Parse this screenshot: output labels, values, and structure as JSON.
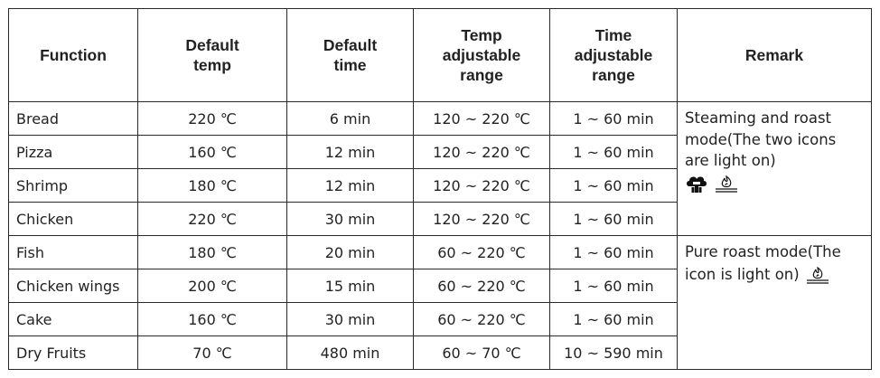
{
  "headers": {
    "function": "Function",
    "default_temp": "Default temp",
    "default_time": "Default time",
    "temp_range": "Temp adjustable range",
    "time_range": "Time adjustable range",
    "remark": "Remark"
  },
  "rows": [
    {
      "function": "Bread",
      "temp": "220 ℃",
      "time": "6 min",
      "temp_range": "120 ~ 220 ℃",
      "time_range": "1 ~ 60 min"
    },
    {
      "function": "Pizza",
      "temp": "160 ℃",
      "time": "12 min",
      "temp_range": "120 ~ 220 ℃",
      "time_range": "1 ~ 60 min"
    },
    {
      "function": "Shrimp",
      "temp": "180 ℃",
      "time": "12 min",
      "temp_range": "120 ~ 220 ℃",
      "time_range": "1 ~ 60 min"
    },
    {
      "function": "Chicken",
      "temp": "220 ℃",
      "time": "30 min",
      "temp_range": "120 ~ 220 ℃",
      "time_range": "1 ~ 60 min"
    },
    {
      "function": "Fish",
      "temp": "180 ℃",
      "time": "20 min",
      "temp_range": "60 ~ 220 ℃",
      "time_range": "1 ~ 60 min"
    },
    {
      "function": "Chicken wings",
      "temp": "200 ℃",
      "time": "15 min",
      "temp_range": "60 ~ 220 ℃",
      "time_range": "1 ~ 60 min"
    },
    {
      "function": "Cake",
      "temp": "160 ℃",
      "time": "30 min",
      "temp_range": "60 ~ 220 ℃",
      "time_range": "1 ~ 60 min"
    },
    {
      "function": "Dry Fruits",
      "temp": "70 ℃",
      "time": "480 min",
      "temp_range": "60 ~ 70 ℃",
      "time_range": "10 ~ 590 min"
    }
  ],
  "remarks": {
    "steam_roast": "Steaming and roast mode(The two icons are light on)",
    "pure_roast": "Pure roast mode(The icon is light on)"
  },
  "icons": {
    "steam": "steam-icon",
    "roast": "roast-icon"
  }
}
